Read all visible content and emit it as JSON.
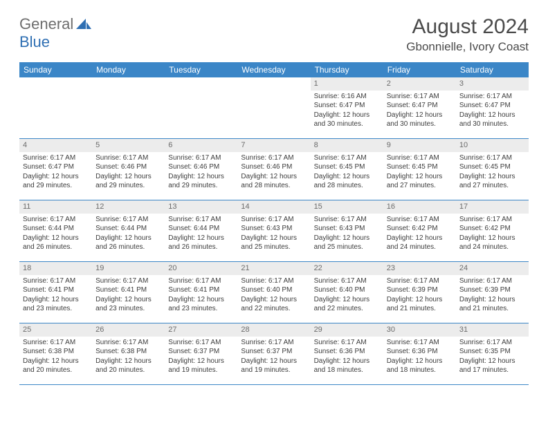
{
  "logo": {
    "general": "General",
    "blue": "Blue"
  },
  "title": "August 2024",
  "location": "Gbonnielle, Ivory Coast",
  "colors": {
    "header_bg": "#3b86c7",
    "header_text": "#ffffff",
    "daynum_bg": "#ececec",
    "daynum_text": "#6b6b6b",
    "body_text": "#3c3c3c",
    "rule": "#3b86c7",
    "logo_gray": "#6d6d6d",
    "logo_blue": "#2f6fb3"
  },
  "daysOfWeek": [
    "Sunday",
    "Monday",
    "Tuesday",
    "Wednesday",
    "Thursday",
    "Friday",
    "Saturday"
  ],
  "weeks": [
    [
      {
        "empty": true
      },
      {
        "empty": true
      },
      {
        "empty": true
      },
      {
        "empty": true
      },
      {
        "num": "1",
        "sunrise": "Sunrise: 6:16 AM",
        "sunset": "Sunset: 6:47 PM",
        "daylight": "Daylight: 12 hours and 30 minutes."
      },
      {
        "num": "2",
        "sunrise": "Sunrise: 6:17 AM",
        "sunset": "Sunset: 6:47 PM",
        "daylight": "Daylight: 12 hours and 30 minutes."
      },
      {
        "num": "3",
        "sunrise": "Sunrise: 6:17 AM",
        "sunset": "Sunset: 6:47 PM",
        "daylight": "Daylight: 12 hours and 30 minutes."
      }
    ],
    [
      {
        "num": "4",
        "sunrise": "Sunrise: 6:17 AM",
        "sunset": "Sunset: 6:47 PM",
        "daylight": "Daylight: 12 hours and 29 minutes."
      },
      {
        "num": "5",
        "sunrise": "Sunrise: 6:17 AM",
        "sunset": "Sunset: 6:46 PM",
        "daylight": "Daylight: 12 hours and 29 minutes."
      },
      {
        "num": "6",
        "sunrise": "Sunrise: 6:17 AM",
        "sunset": "Sunset: 6:46 PM",
        "daylight": "Daylight: 12 hours and 29 minutes."
      },
      {
        "num": "7",
        "sunrise": "Sunrise: 6:17 AM",
        "sunset": "Sunset: 6:46 PM",
        "daylight": "Daylight: 12 hours and 28 minutes."
      },
      {
        "num": "8",
        "sunrise": "Sunrise: 6:17 AM",
        "sunset": "Sunset: 6:45 PM",
        "daylight": "Daylight: 12 hours and 28 minutes."
      },
      {
        "num": "9",
        "sunrise": "Sunrise: 6:17 AM",
        "sunset": "Sunset: 6:45 PM",
        "daylight": "Daylight: 12 hours and 27 minutes."
      },
      {
        "num": "10",
        "sunrise": "Sunrise: 6:17 AM",
        "sunset": "Sunset: 6:45 PM",
        "daylight": "Daylight: 12 hours and 27 minutes."
      }
    ],
    [
      {
        "num": "11",
        "sunrise": "Sunrise: 6:17 AM",
        "sunset": "Sunset: 6:44 PM",
        "daylight": "Daylight: 12 hours and 26 minutes."
      },
      {
        "num": "12",
        "sunrise": "Sunrise: 6:17 AM",
        "sunset": "Sunset: 6:44 PM",
        "daylight": "Daylight: 12 hours and 26 minutes."
      },
      {
        "num": "13",
        "sunrise": "Sunrise: 6:17 AM",
        "sunset": "Sunset: 6:44 PM",
        "daylight": "Daylight: 12 hours and 26 minutes."
      },
      {
        "num": "14",
        "sunrise": "Sunrise: 6:17 AM",
        "sunset": "Sunset: 6:43 PM",
        "daylight": "Daylight: 12 hours and 25 minutes."
      },
      {
        "num": "15",
        "sunrise": "Sunrise: 6:17 AM",
        "sunset": "Sunset: 6:43 PM",
        "daylight": "Daylight: 12 hours and 25 minutes."
      },
      {
        "num": "16",
        "sunrise": "Sunrise: 6:17 AM",
        "sunset": "Sunset: 6:42 PM",
        "daylight": "Daylight: 12 hours and 24 minutes."
      },
      {
        "num": "17",
        "sunrise": "Sunrise: 6:17 AM",
        "sunset": "Sunset: 6:42 PM",
        "daylight": "Daylight: 12 hours and 24 minutes."
      }
    ],
    [
      {
        "num": "18",
        "sunrise": "Sunrise: 6:17 AM",
        "sunset": "Sunset: 6:41 PM",
        "daylight": "Daylight: 12 hours and 23 minutes."
      },
      {
        "num": "19",
        "sunrise": "Sunrise: 6:17 AM",
        "sunset": "Sunset: 6:41 PM",
        "daylight": "Daylight: 12 hours and 23 minutes."
      },
      {
        "num": "20",
        "sunrise": "Sunrise: 6:17 AM",
        "sunset": "Sunset: 6:41 PM",
        "daylight": "Daylight: 12 hours and 23 minutes."
      },
      {
        "num": "21",
        "sunrise": "Sunrise: 6:17 AM",
        "sunset": "Sunset: 6:40 PM",
        "daylight": "Daylight: 12 hours and 22 minutes."
      },
      {
        "num": "22",
        "sunrise": "Sunrise: 6:17 AM",
        "sunset": "Sunset: 6:40 PM",
        "daylight": "Daylight: 12 hours and 22 minutes."
      },
      {
        "num": "23",
        "sunrise": "Sunrise: 6:17 AM",
        "sunset": "Sunset: 6:39 PM",
        "daylight": "Daylight: 12 hours and 21 minutes."
      },
      {
        "num": "24",
        "sunrise": "Sunrise: 6:17 AM",
        "sunset": "Sunset: 6:39 PM",
        "daylight": "Daylight: 12 hours and 21 minutes."
      }
    ],
    [
      {
        "num": "25",
        "sunrise": "Sunrise: 6:17 AM",
        "sunset": "Sunset: 6:38 PM",
        "daylight": "Daylight: 12 hours and 20 minutes."
      },
      {
        "num": "26",
        "sunrise": "Sunrise: 6:17 AM",
        "sunset": "Sunset: 6:38 PM",
        "daylight": "Daylight: 12 hours and 20 minutes."
      },
      {
        "num": "27",
        "sunrise": "Sunrise: 6:17 AM",
        "sunset": "Sunset: 6:37 PM",
        "daylight": "Daylight: 12 hours and 19 minutes."
      },
      {
        "num": "28",
        "sunrise": "Sunrise: 6:17 AM",
        "sunset": "Sunset: 6:37 PM",
        "daylight": "Daylight: 12 hours and 19 minutes."
      },
      {
        "num": "29",
        "sunrise": "Sunrise: 6:17 AM",
        "sunset": "Sunset: 6:36 PM",
        "daylight": "Daylight: 12 hours and 18 minutes."
      },
      {
        "num": "30",
        "sunrise": "Sunrise: 6:17 AM",
        "sunset": "Sunset: 6:36 PM",
        "daylight": "Daylight: 12 hours and 18 minutes."
      },
      {
        "num": "31",
        "sunrise": "Sunrise: 6:17 AM",
        "sunset": "Sunset: 6:35 PM",
        "daylight": "Daylight: 12 hours and 17 minutes."
      }
    ]
  ]
}
